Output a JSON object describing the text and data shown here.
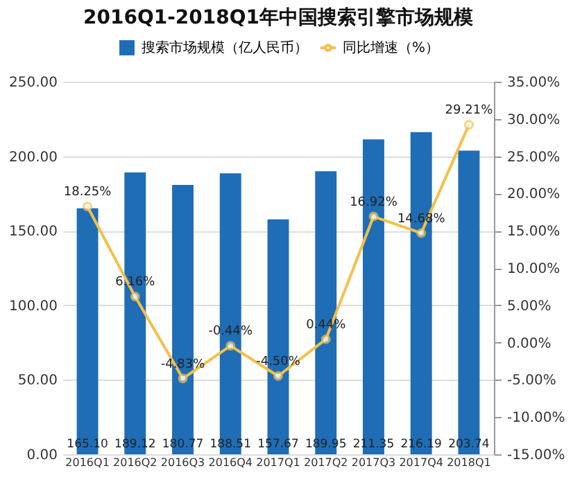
{
  "chart_data": {
    "type": "bar",
    "title": "2016Q1-2018Q1年中国搜索引擎市场规模",
    "categories": [
      "2016Q1",
      "2016Q2",
      "2016Q3",
      "2016Q4",
      "2017Q1",
      "2017Q2",
      "2017Q3",
      "2017Q4",
      "2018Q1"
    ],
    "series": [
      {
        "name": "搜索市场规模（亿人民币）",
        "color": "#1f6db5",
        "values": [
          165.1,
          189.12,
          180.77,
          188.51,
          157.67,
          189.95,
          211.35,
          216.19,
          203.74
        ],
        "value_labels": [
          "165.10",
          "189.12",
          "180.77",
          "188.51",
          "157.67",
          "189.95",
          "211.35",
          "216.19",
          "203.74"
        ]
      },
      {
        "name": "同比增速（%）",
        "type": "line",
        "axis": "y2",
        "color": "#f2c04a",
        "marker": "circle",
        "values": [
          18.25,
          6.16,
          -4.83,
          -0.44,
          -4.5,
          0.44,
          16.92,
          14.68,
          29.21
        ],
        "value_labels": [
          "18.25%",
          "6.16%",
          "-4.83%",
          "-0.44%",
          "-4.50%",
          "0.44%",
          "16.92%",
          "14.68%",
          "29.21%"
        ]
      }
    ],
    "ylim": [
      0,
      250
    ],
    "yticks": [
      {
        "value": 0,
        "label": "0.00"
      },
      {
        "value": 50,
        "label": "50.00"
      },
      {
        "value": 100,
        "label": "100.00"
      },
      {
        "value": 150,
        "label": "150.00"
      },
      {
        "value": 200,
        "label": "200.00"
      },
      {
        "value": 250,
        "label": "250.00"
      }
    ],
    "y2lim": [
      -15,
      35
    ],
    "y2ticks": [
      {
        "value": -15,
        "label": "-15.00%"
      },
      {
        "value": -10,
        "label": "-10.00%"
      },
      {
        "value": -5,
        "label": "-5.00%"
      },
      {
        "value": 0,
        "label": "0.00%"
      },
      {
        "value": 5,
        "label": "5.00%"
      },
      {
        "value": 10,
        "label": "10.00%"
      },
      {
        "value": 15,
        "label": "15.00%"
      },
      {
        "value": 20,
        "label": "20.00%"
      },
      {
        "value": 25,
        "label": "25.00%"
      },
      {
        "value": 30,
        "label": "30.00%"
      },
      {
        "value": 35,
        "label": "35.00%"
      }
    ],
    "grid": "y",
    "legend": "top"
  }
}
